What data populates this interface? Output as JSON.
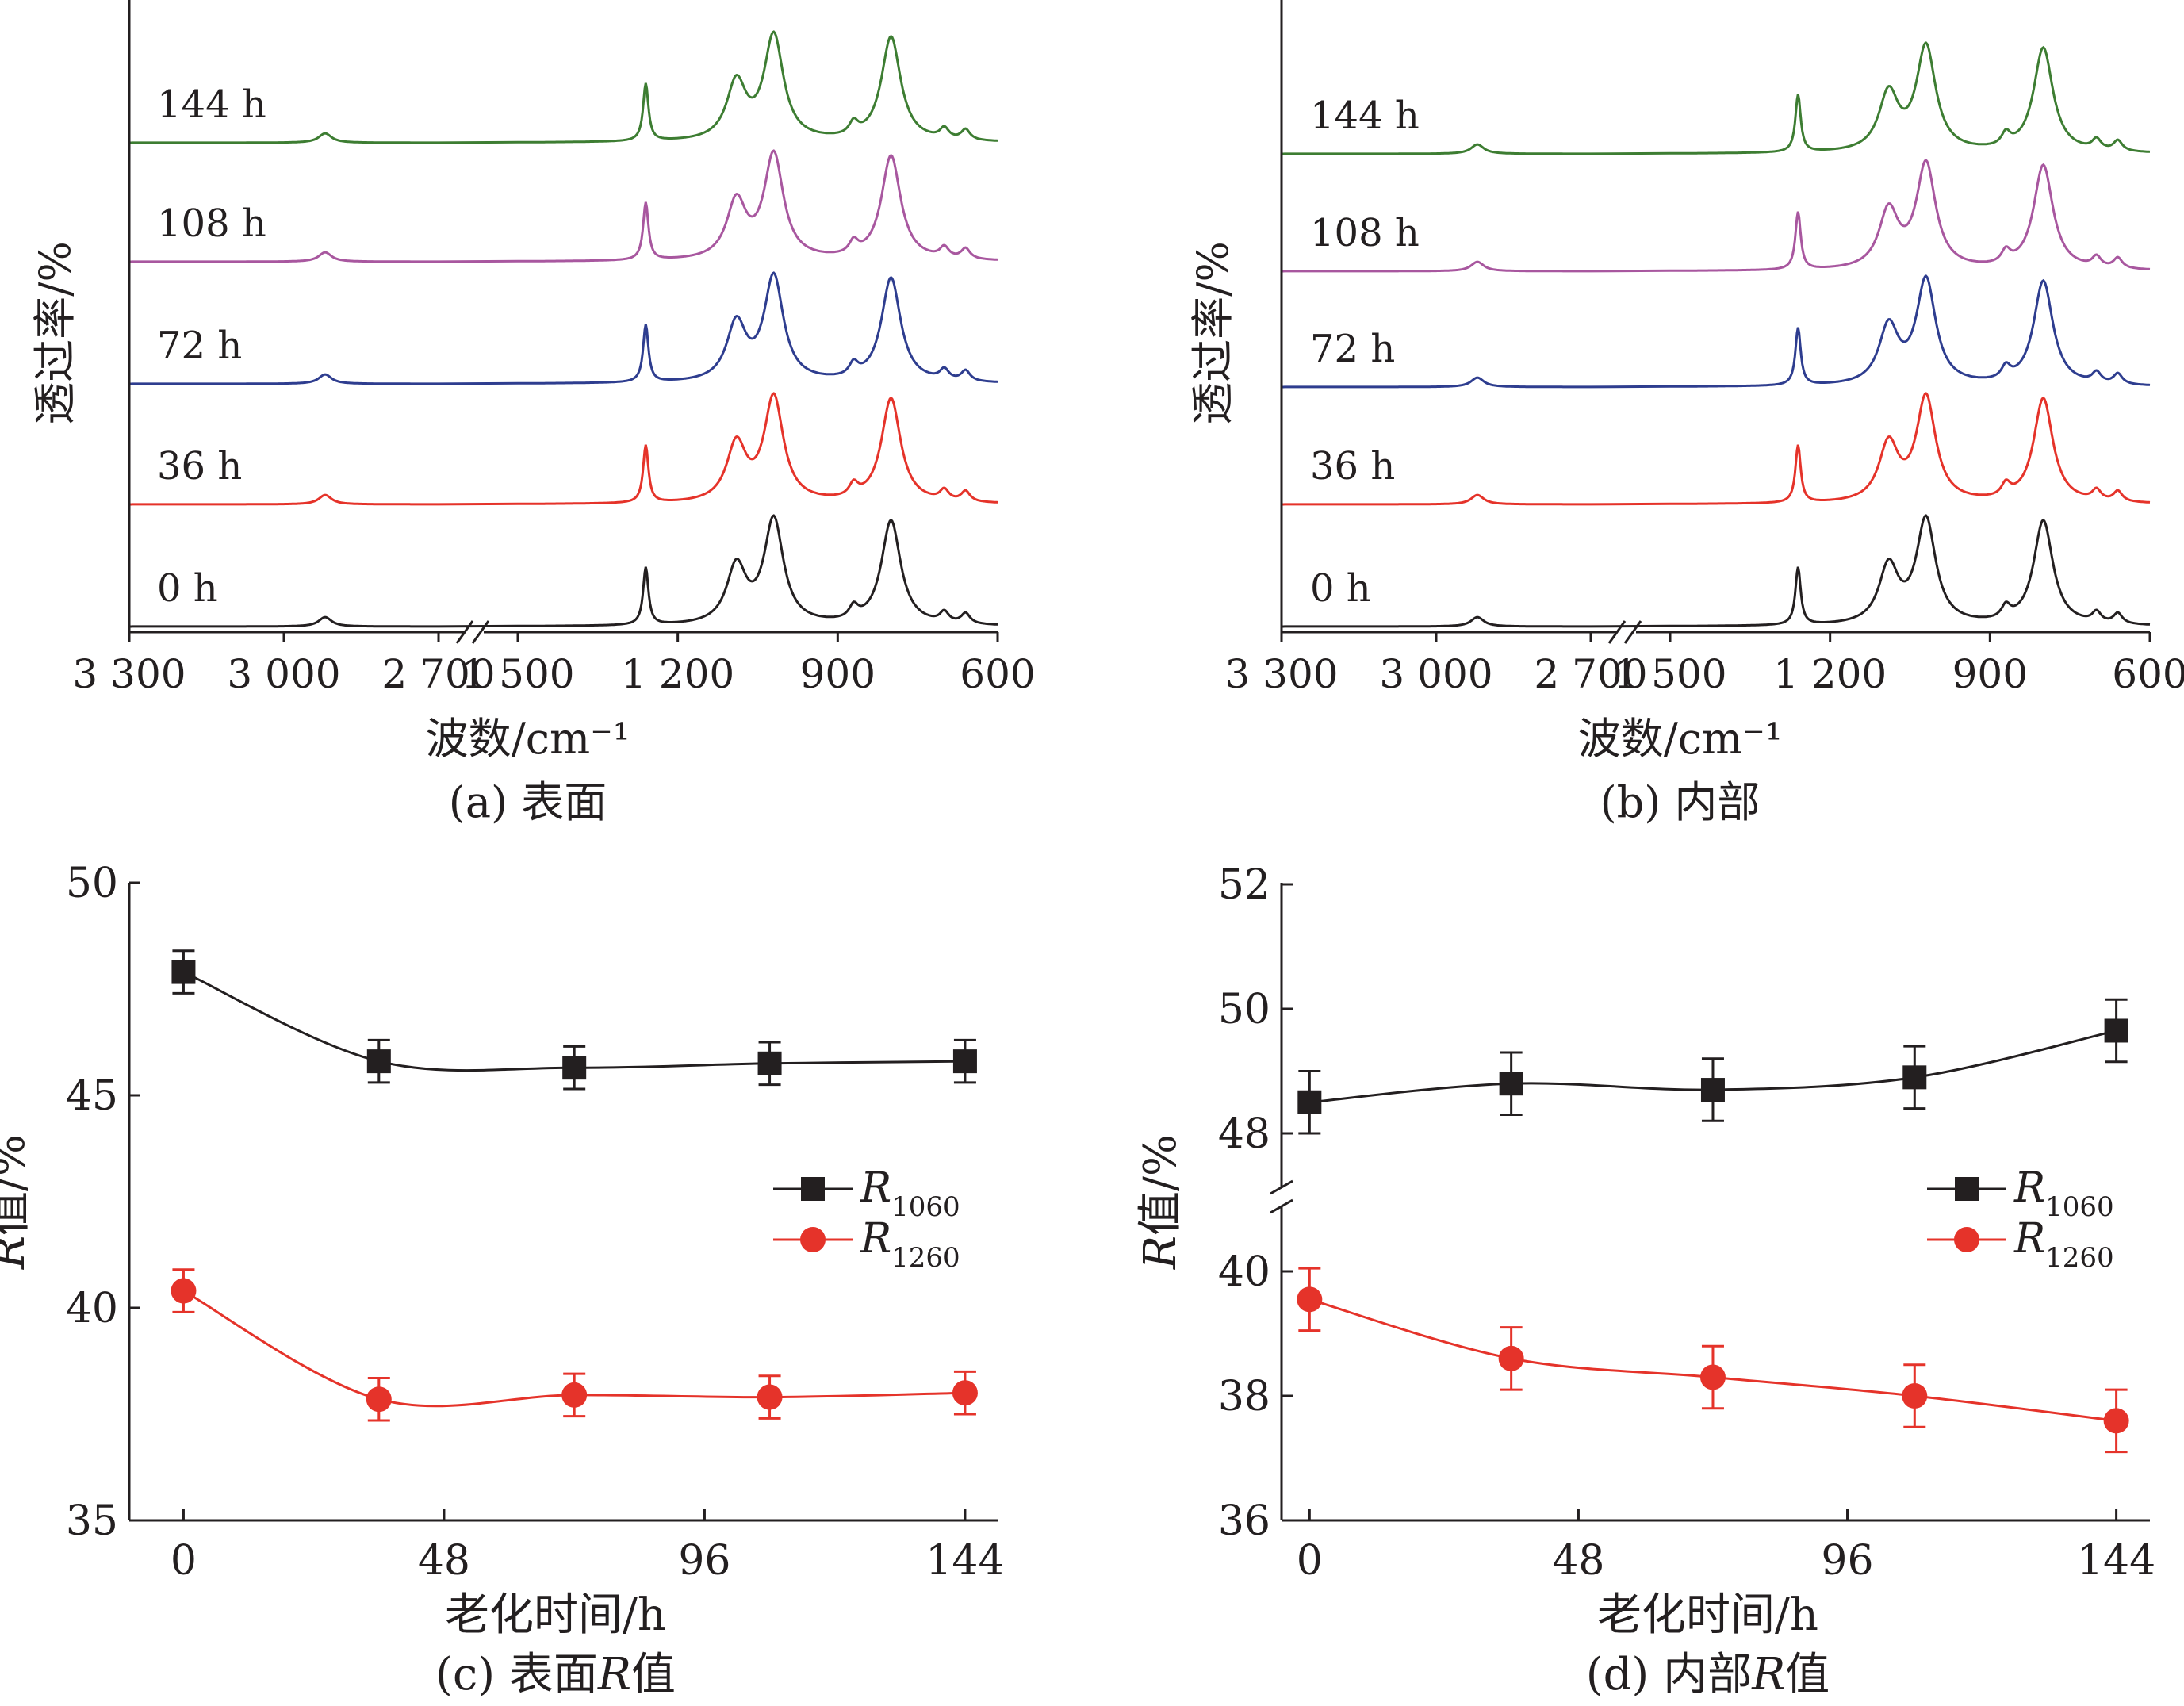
{
  "figure": {
    "colors": {
      "axis": "#231f20",
      "h0": "#231f20",
      "h36": "#e5332a",
      "h72": "#2e3d8f",
      "h108": "#a8579f",
      "h144": "#3d7d32",
      "r1060": "#231f20",
      "r1260": "#e5332a"
    }
  },
  "chart_data": [
    {
      "id": "a",
      "type": "line",
      "caption": "(a) 表面",
      "xlabel": "波数/cm⁻¹",
      "ylabel": "透过率/%",
      "x_ticks": [
        "3 300",
        "3 000",
        "2 700",
        "1 500",
        "1 200",
        "900",
        "600"
      ],
      "x_break": "between 2 700 and 1 500",
      "series": [
        {
          "name": "0 h",
          "offset": 0
        },
        {
          "name": "36 h",
          "offset": 1
        },
        {
          "name": "72 h",
          "offset": 2
        },
        {
          "name": "108 h",
          "offset": 3
        },
        {
          "name": "144 h",
          "offset": 4
        }
      ],
      "peaks": [
        {
          "x": 2920,
          "amp": 0.09
        },
        {
          "x": 1260,
          "amp": 0.55
        },
        {
          "x": 1090,
          "amp": 0.55
        },
        {
          "x": 1020,
          "amp": 1.0
        },
        {
          "x": 870,
          "amp": 0.12
        },
        {
          "x": 800,
          "amp": 1.0
        },
        {
          "x": 700,
          "amp": 0.1
        },
        {
          "x": 660,
          "amp": 0.1
        }
      ]
    },
    {
      "id": "b",
      "type": "line",
      "caption": "(b) 内部",
      "xlabel": "波数/cm⁻¹",
      "ylabel": "透过率/%",
      "x_ticks": [
        "3 300",
        "3 000",
        "2 700",
        "1 500",
        "1 200",
        "900",
        "600"
      ],
      "x_break": "between 2 700 and 1 500",
      "series": [
        {
          "name": "0 h",
          "offset": 0
        },
        {
          "name": "36 h",
          "offset": 1
        },
        {
          "name": "72 h",
          "offset": 2
        },
        {
          "name": "108 h",
          "offset": 3
        },
        {
          "name": "144 h",
          "offset": 4
        }
      ],
      "peaks": [
        {
          "x": 2920,
          "amp": 0.09
        },
        {
          "x": 1260,
          "amp": 0.55
        },
        {
          "x": 1090,
          "amp": 0.55
        },
        {
          "x": 1020,
          "amp": 1.0
        },
        {
          "x": 870,
          "amp": 0.12
        },
        {
          "x": 800,
          "amp": 1.0
        },
        {
          "x": 700,
          "amp": 0.1
        },
        {
          "x": 660,
          "amp": 0.1
        }
      ]
    },
    {
      "id": "c",
      "type": "scatter",
      "caption": "(c) 表面R值",
      "caption_prefix": "(c) 表面",
      "caption_italic": "R",
      "caption_suffix": "值",
      "xlabel": "老化时间/h",
      "ylabel": "R值/%",
      "ylabel_italic": "R",
      "ylabel_rest": "值/%",
      "x_ticks": [
        0,
        48,
        96,
        144
      ],
      "y_ticks": [
        35,
        40,
        45,
        50
      ],
      "xlim": [
        -10,
        150
      ],
      "ylim": [
        35,
        50
      ],
      "legend": "right",
      "series": [
        {
          "name": "R1060",
          "name_main": "R",
          "name_sub": "1060",
          "marker": "square",
          "x": [
            0,
            36,
            72,
            108,
            144
          ],
          "y": [
            47.9,
            45.8,
            45.65,
            45.75,
            45.8
          ],
          "err": [
            0.5,
            0.5,
            0.5,
            0.5,
            0.5
          ]
        },
        {
          "name": "R1260",
          "name_main": "R",
          "name_sub": "1260",
          "marker": "circle",
          "x": [
            0,
            36,
            72,
            108,
            144
          ],
          "y": [
            40.4,
            37.85,
            37.95,
            37.9,
            38.0
          ],
          "err": [
            0.5,
            0.5,
            0.5,
            0.5,
            0.5
          ]
        }
      ]
    },
    {
      "id": "d",
      "type": "scatter",
      "caption": "(d) 内部R值",
      "caption_prefix": "(d) 内部",
      "caption_italic": "R",
      "caption_suffix": "值",
      "xlabel": "老化时间/h",
      "ylabel": "R值/%",
      "ylabel_italic": "R",
      "ylabel_rest": "值/%",
      "x_ticks": [
        0,
        48,
        96,
        144
      ],
      "y_ticks": [
        36,
        38,
        40,
        48,
        50,
        52
      ],
      "y_break": "between 40 and 48",
      "xlim": [
        -5,
        150
      ],
      "legend": "right",
      "series": [
        {
          "name": "R1060",
          "name_main": "R",
          "name_sub": "1060",
          "marker": "square",
          "x": [
            0,
            36,
            72,
            108,
            144
          ],
          "y": [
            48.5,
            48.8,
            48.7,
            48.9,
            49.65
          ],
          "err": [
            0.5,
            0.5,
            0.5,
            0.5,
            0.5
          ]
        },
        {
          "name": "R1260",
          "name_main": "R",
          "name_sub": "1260",
          "marker": "circle",
          "x": [
            0,
            36,
            72,
            108,
            144
          ],
          "y": [
            39.55,
            38.6,
            38.3,
            38.0,
            37.6
          ],
          "err": [
            0.5,
            0.5,
            0.5,
            0.5,
            0.5
          ]
        }
      ]
    }
  ]
}
